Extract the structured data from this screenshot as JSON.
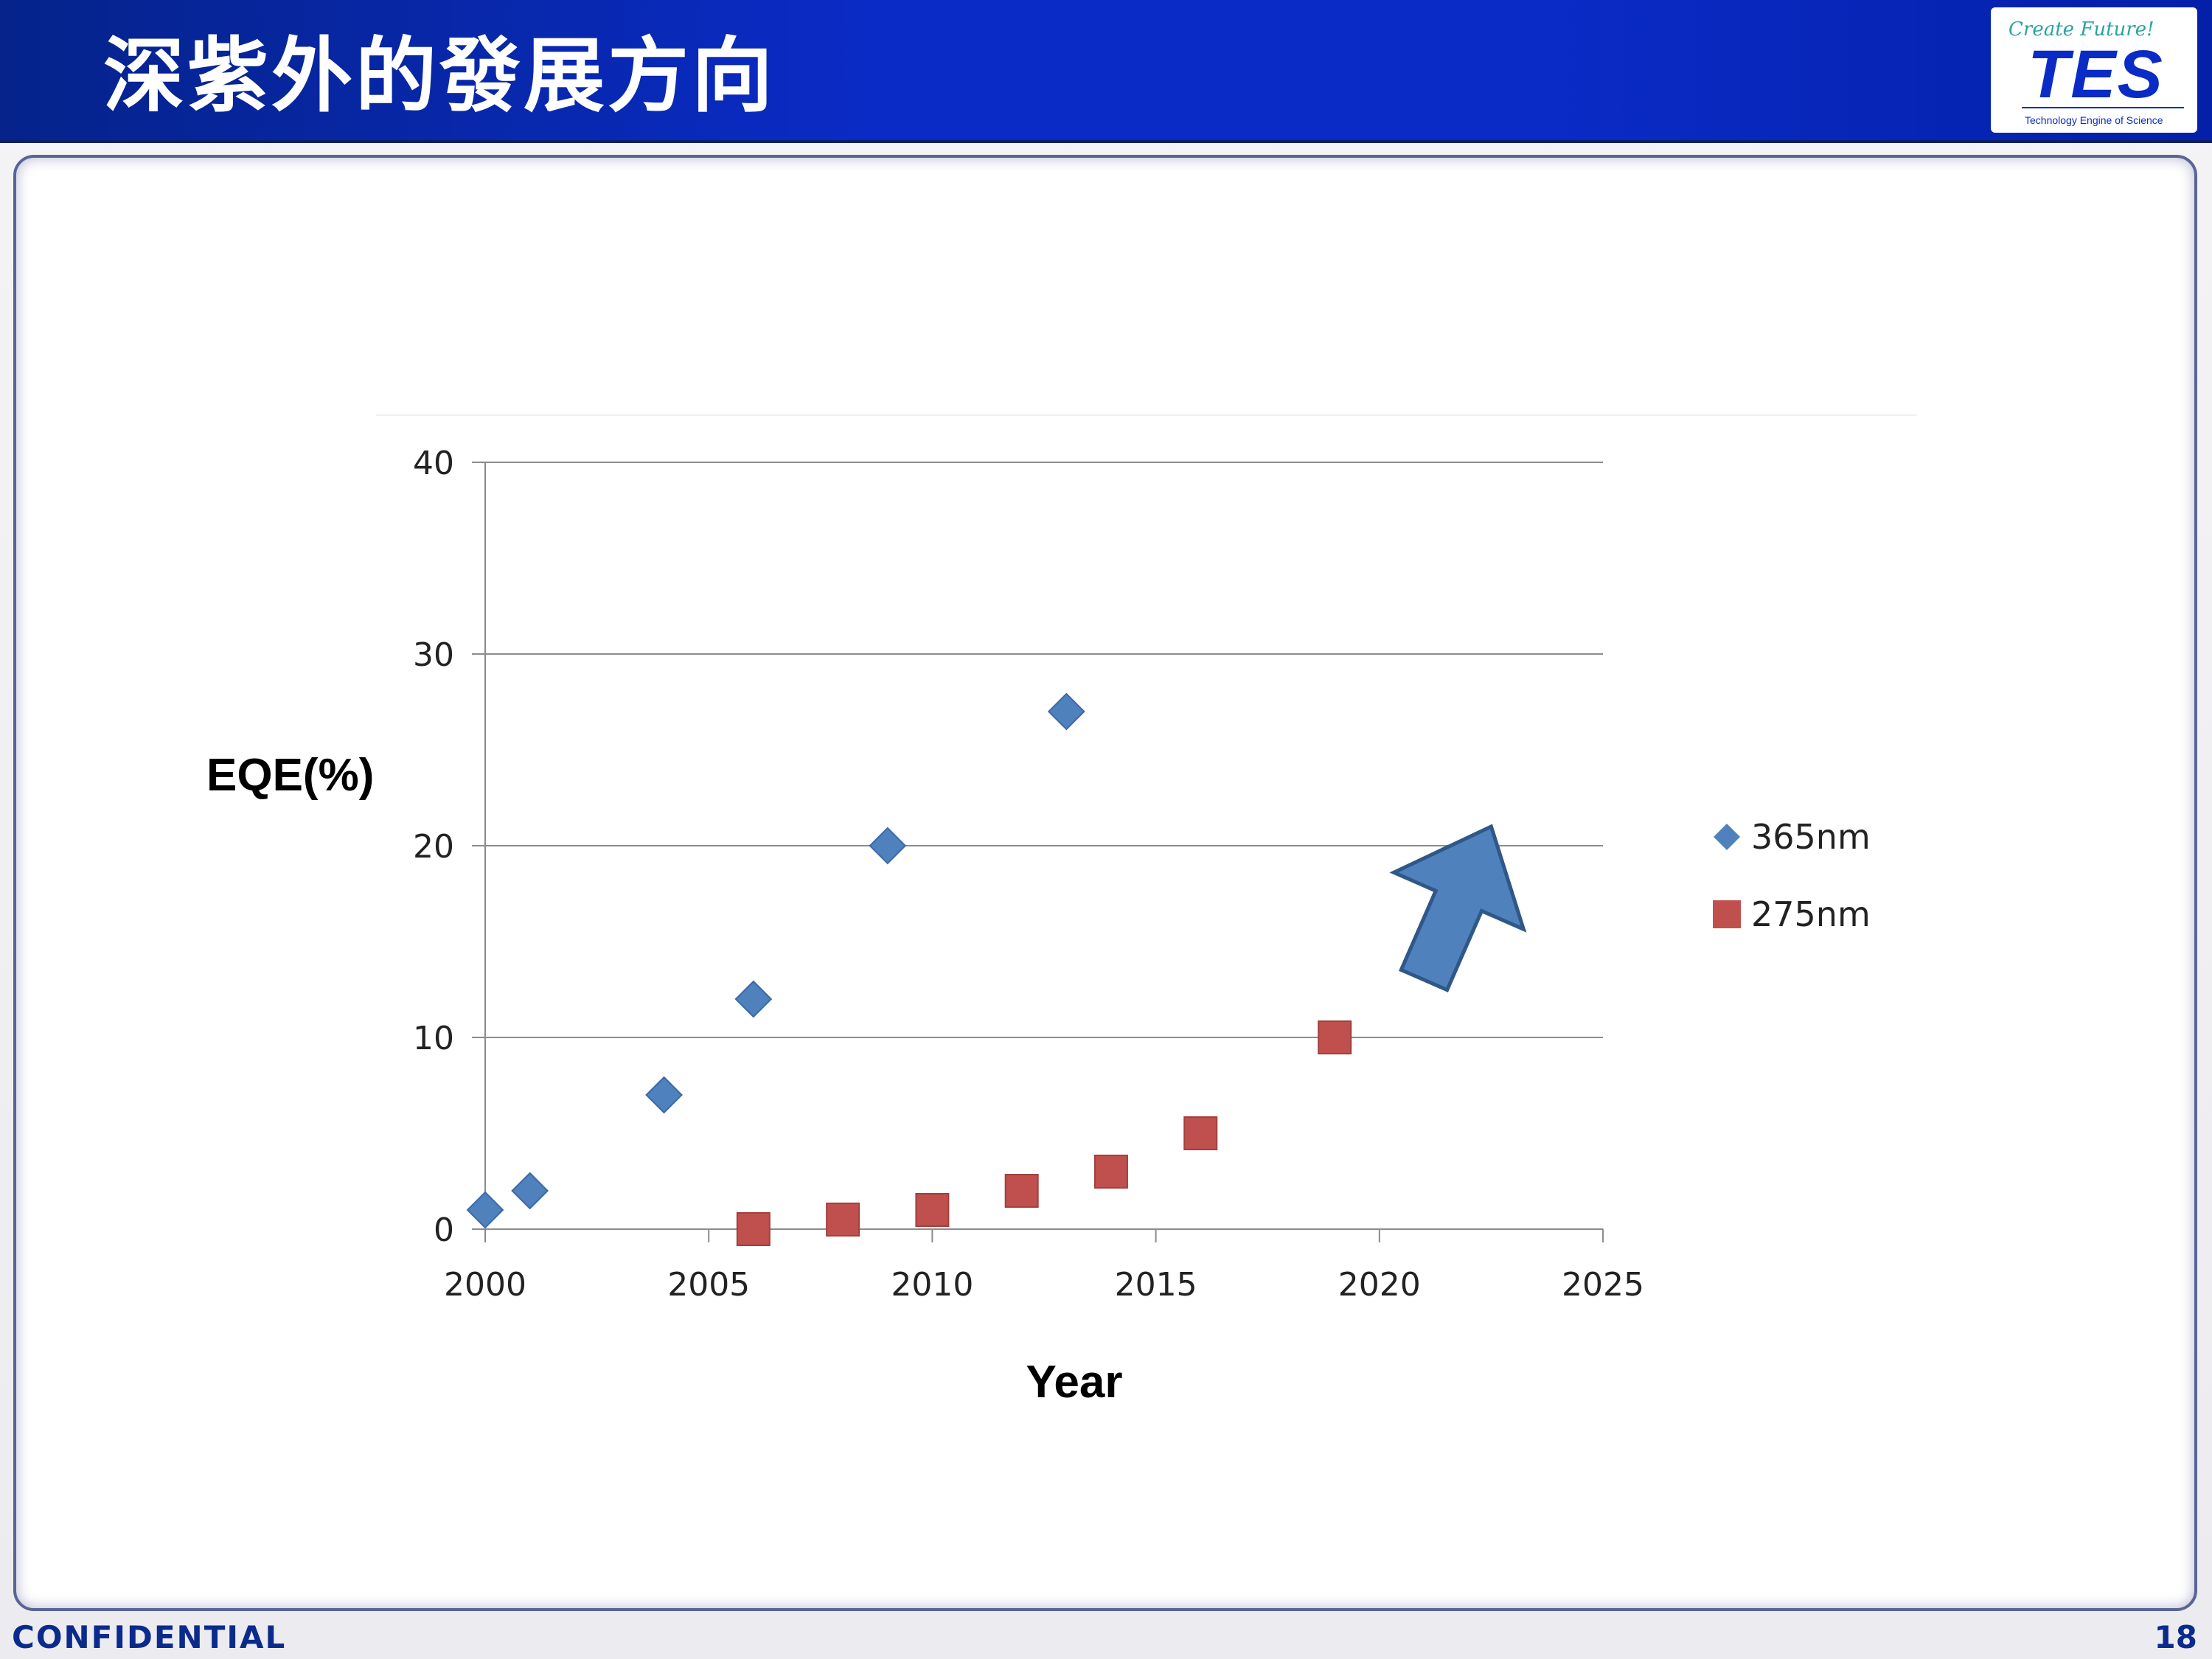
{
  "header": {
    "title": "深紫外的發展方向"
  },
  "logo": {
    "tagline_script": "Create Future!",
    "brand": "TES",
    "subtitle": "Technology Engine of Science"
  },
  "footer": {
    "confidential": "CONFIDENTIAL",
    "page_number": "18"
  },
  "chart_data": {
    "type": "scatter",
    "title": "",
    "xlabel": "Year",
    "ylabel": "EQE(%)",
    "xlim": [
      2000,
      2025
    ],
    "ylim": [
      0,
      40
    ],
    "x_ticks": [
      2000,
      2005,
      2010,
      2015,
      2020,
      2025
    ],
    "y_ticks": [
      0,
      10,
      20,
      30,
      40
    ],
    "grid": "horizontal",
    "legend": "right",
    "series": [
      {
        "name": "365nm",
        "marker": "diamond",
        "color": "#4F81BD",
        "points": [
          {
            "x": 2000,
            "y": 1
          },
          {
            "x": 2001,
            "y": 2
          },
          {
            "x": 2004,
            "y": 7
          },
          {
            "x": 2006,
            "y": 12
          },
          {
            "x": 2009,
            "y": 20
          },
          {
            "x": 2013,
            "y": 27
          }
        ]
      },
      {
        "name": "275nm",
        "marker": "square",
        "color": "#C0504D",
        "points": [
          {
            "x": 2006,
            "y": 0
          },
          {
            "x": 2008,
            "y": 0.5
          },
          {
            "x": 2010,
            "y": 1
          },
          {
            "x": 2012,
            "y": 2
          },
          {
            "x": 2014,
            "y": 3
          },
          {
            "x": 2016,
            "y": 5
          },
          {
            "x": 2019,
            "y": 10
          }
        ]
      }
    ],
    "annotation": {
      "type": "arrow",
      "color": "#4F81BD",
      "from": {
        "x": 2021,
        "y": 13
      },
      "to": {
        "x": 2022.5,
        "y": 21
      }
    }
  }
}
